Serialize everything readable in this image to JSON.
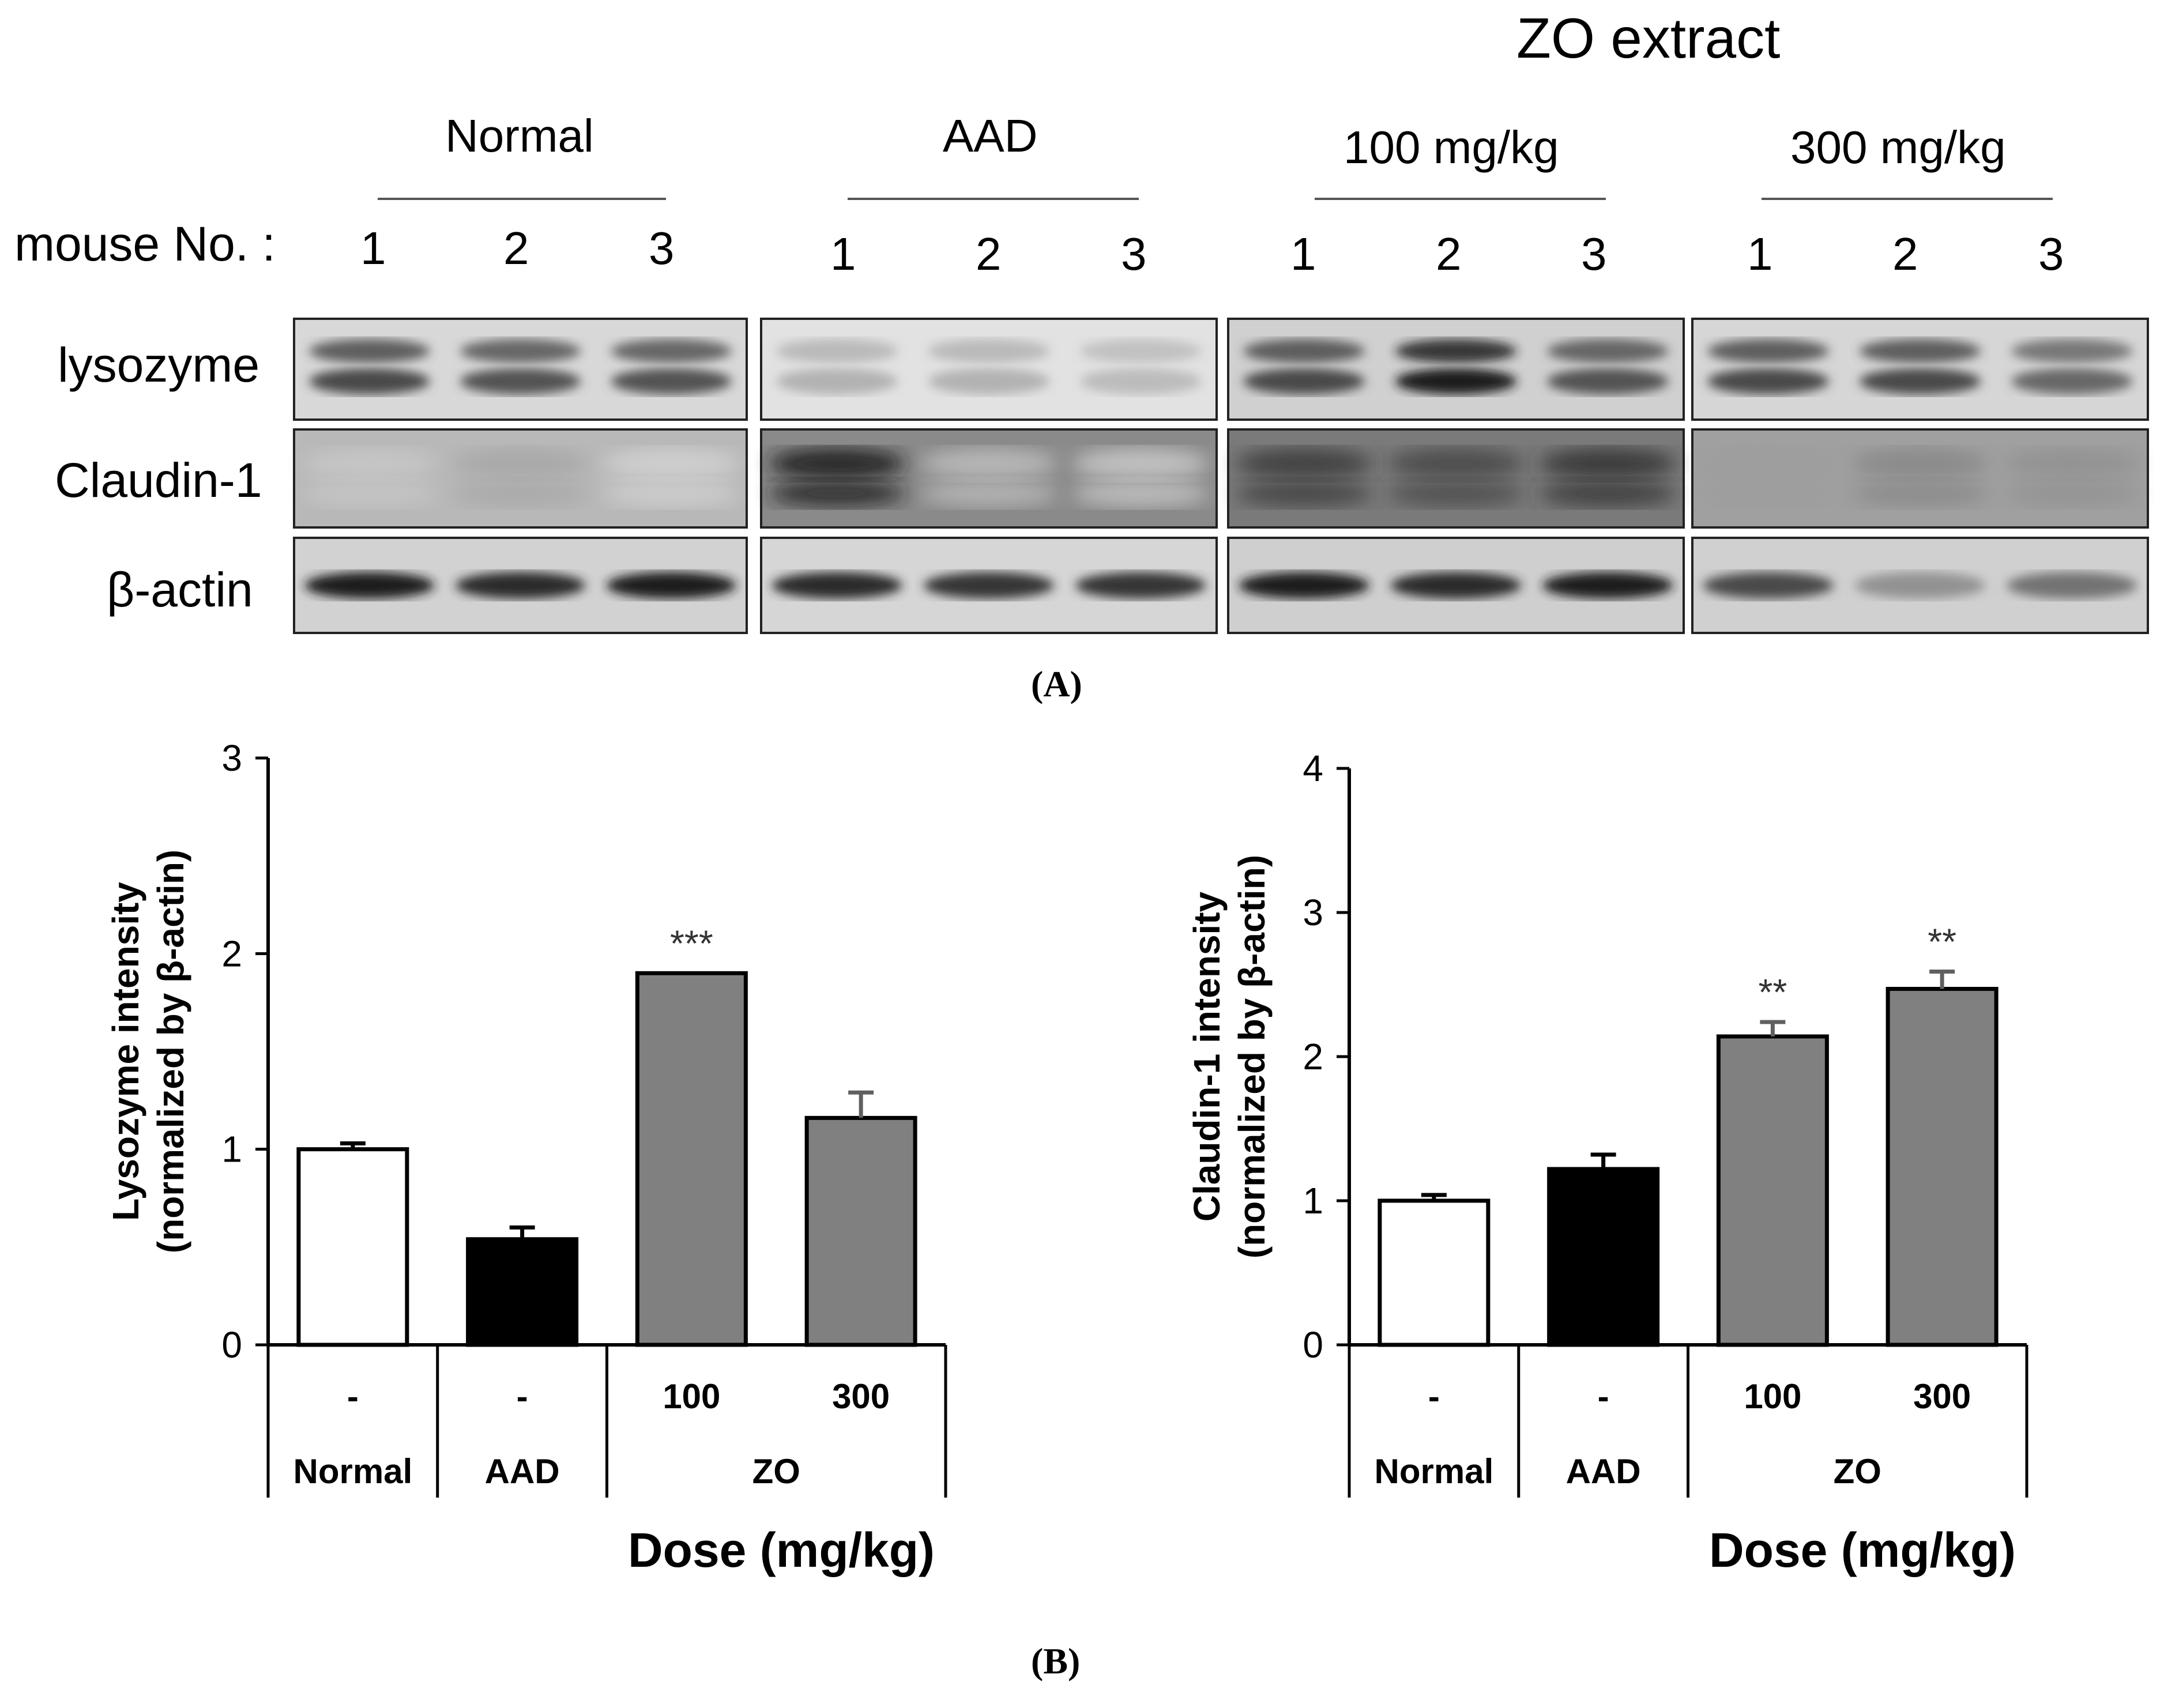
{
  "western_blot": {
    "title": "ZO extract",
    "lane_row_label": "mouse No. :",
    "groups": [
      {
        "label": "Normal",
        "lanes": [
          "1",
          "2",
          "3"
        ]
      },
      {
        "label": "AAD",
        "lanes": [
          "1",
          "2",
          "3"
        ]
      },
      {
        "label": "100 mg/kg",
        "lanes": [
          "1",
          "2",
          "3"
        ]
      },
      {
        "label": "300 mg/kg",
        "lanes": [
          "1",
          "2",
          "3"
        ]
      }
    ],
    "rows": [
      {
        "label": "lysozyme"
      },
      {
        "label": "Claudin-1"
      },
      {
        "label": "β-actin"
      }
    ],
    "panel_label": "(A)"
  },
  "panel_b_label": "(B)",
  "chart_data": [
    {
      "type": "bar",
      "categories": [
        "Normal",
        "AAD",
        "ZO 100",
        "ZO 300"
      ],
      "dose_labels": [
        "-",
        "-",
        "100",
        "300"
      ],
      "group_labels": [
        "Normal",
        "AAD",
        "ZO"
      ],
      "values": [
        1.0,
        0.54,
        1.9,
        1.16
      ],
      "errors": [
        0.03,
        0.06,
        0.0,
        0.13
      ],
      "significance": [
        "",
        "",
        "***",
        ""
      ],
      "bar_colors": [
        "#ffffff",
        "#000000",
        "#808080",
        "#808080"
      ],
      "ylim": [
        0,
        3
      ],
      "yticks": [
        "0",
        "1",
        "2",
        "3"
      ],
      "ylabel_line1": "Lysozyme intensity",
      "ylabel_line2": "(normalized by β-actin)",
      "xlabel": "Dose (mg/kg)"
    },
    {
      "type": "bar",
      "categories": [
        "Normal",
        "AAD",
        "ZO 100",
        "ZO 300"
      ],
      "dose_labels": [
        "-",
        "-",
        "100",
        "300"
      ],
      "group_labels": [
        "Normal",
        "AAD",
        "ZO"
      ],
      "values": [
        1.0,
        1.22,
        2.14,
        2.47
      ],
      "errors": [
        0.04,
        0.1,
        0.1,
        0.12
      ],
      "significance": [
        "",
        "",
        "**",
        "**"
      ],
      "bar_colors": [
        "#ffffff",
        "#000000",
        "#808080",
        "#808080"
      ],
      "ylim": [
        0,
        4
      ],
      "yticks": [
        "0",
        "1",
        "2",
        "3",
        "4"
      ],
      "ylabel_line1": "Claudin-1 intensity",
      "ylabel_line2": "(normalized by β-actin)",
      "xlabel": "Dose (mg/kg)"
    }
  ]
}
